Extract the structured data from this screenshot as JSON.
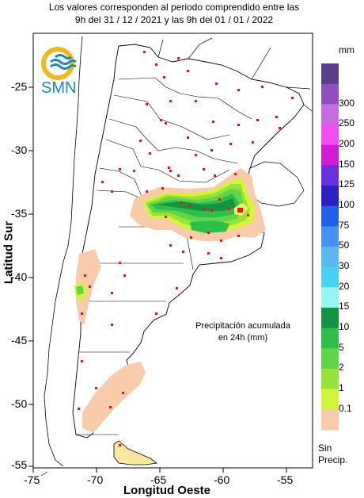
{
  "header": {
    "line1": "Los valores corresponden al periodo comprendido entre las",
    "line2": "9h del 31 / 12 / 2021  y las 9h del 01 / 01 / 2022"
  },
  "logo": {
    "text": "SMN"
  },
  "map": {
    "annotation_line1": "Precipitación acumulada",
    "annotation_line2": "en 24h (mm)",
    "xlabel": "Longitud Oeste",
    "ylabel": "Latitud Sur",
    "xticks": [
      "-75",
      "-70",
      "-65",
      "-60",
      "-55"
    ],
    "yticks": [
      "-25",
      "-30",
      "-35",
      "-40",
      "-45",
      "-50",
      "-55"
    ]
  },
  "legend": {
    "units": "mm",
    "labels": [
      "300",
      "250",
      "200",
      "150",
      "125",
      "100",
      "75",
      "50",
      "30",
      "20",
      "15",
      "10",
      "5",
      "2",
      "1",
      "0.1"
    ],
    "sin_precip_line1": "Sin",
    "sin_precip_line2": "Precip.",
    "colors": [
      "#5a3d8f",
      "#8f4fc0",
      "#c66be0",
      "#f04ef0",
      "#d41bd4",
      "#6a2fe0",
      "#2a1fc0",
      "#2060e8",
      "#4a90f0",
      "#5ab8f0",
      "#48d2f2",
      "#98f6f0",
      "#129440",
      "#2fbe4a",
      "#62d44a",
      "#98e23a",
      "#d4f43a",
      "#f8ccaa"
    ]
  },
  "colors": {
    "land": "#ffffff",
    "ocean": "#ffffff",
    "border": "#000000",
    "stations": "#e01818"
  }
}
